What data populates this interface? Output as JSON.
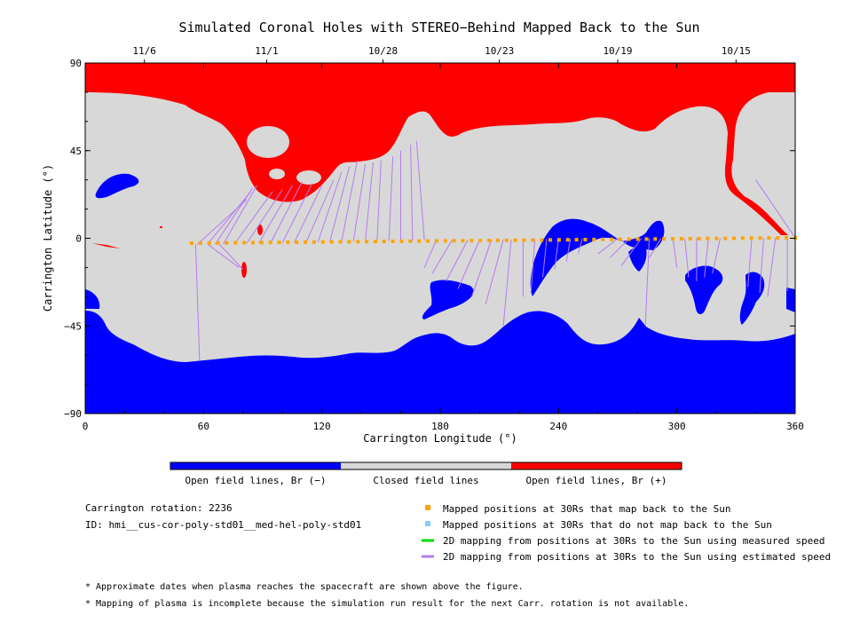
{
  "chart_data": {
    "type": "map",
    "title": "Simulated Coronal Holes with STEREO−Behind Mapped Back to the Sun",
    "xlabel": "Carrington Longitude (°)",
    "ylabel": "Carrington Latitude (°)",
    "xlim": [
      0,
      360
    ],
    "ylim": [
      -90,
      90
    ],
    "x_ticks": [
      "0",
      "60",
      "120",
      "180",
      "240",
      "300",
      "360"
    ],
    "y_ticks": [
      "−90",
      "−45",
      "0",
      "45",
      "90"
    ],
    "top_date_ticks": [
      {
        "label": "11/6",
        "lon": 30
      },
      {
        "label": "11/1",
        "lon": 92
      },
      {
        "label": "10/28",
        "lon": 151
      },
      {
        "label": "10/23",
        "lon": 210
      },
      {
        "label": "10/19",
        "lon": 270
      },
      {
        "label": "10/15",
        "lon": 330
      }
    ],
    "colorbar": [
      {
        "label": "Open field lines, Br (−)",
        "color": "#0000ff"
      },
      {
        "label": "Closed field lines",
        "color": "#d8d8d8"
      },
      {
        "label": "Open field lines, Br (+)",
        "color": "#ff0000"
      }
    ],
    "mapped_points": {
      "lon_start": 54,
      "lon_end": 360,
      "lat_start": -2.5,
      "lat_end": 0.3,
      "count": 70,
      "color": "#ffa500"
    },
    "mapping_lines": [
      {
        "from": [
          56,
          -3
        ],
        "to": [
          58,
          -63
        ]
      },
      {
        "from": [
          57,
          -3
        ],
        "to": [
          82,
          20
        ]
      },
      {
        "from": [
          62,
          -3
        ],
        "to": [
          84,
          24
        ]
      },
      {
        "from": [
          66,
          -3
        ],
        "to": [
          85,
          26
        ]
      },
      {
        "from": [
          70,
          -3
        ],
        "to": [
          87,
          27
        ]
      },
      {
        "from": [
          62,
          -3
        ],
        "to": [
          78,
          -15
        ]
      },
      {
        "from": [
          68,
          -3
        ],
        "to": [
          80,
          -16
        ]
      },
      {
        "from": [
          76,
          -2.5
        ],
        "to": [
          95,
          24
        ]
      },
      {
        "from": [
          82,
          -2.5
        ],
        "to": [
          100,
          25
        ]
      },
      {
        "from": [
          88,
          -2.5
        ],
        "to": [
          105,
          27
        ]
      },
      {
        "from": [
          94,
          -2.4
        ],
        "to": [
          110,
          29
        ]
      },
      {
        "from": [
          100,
          -2.3
        ],
        "to": [
          115,
          28
        ]
      },
      {
        "from": [
          106,
          -2.2
        ],
        "to": [
          120,
          27
        ]
      },
      {
        "from": [
          112,
          -2.1
        ],
        "to": [
          126,
          30
        ]
      },
      {
        "from": [
          118,
          -2.0
        ],
        "to": [
          130,
          34
        ]
      },
      {
        "from": [
          124,
          -1.9
        ],
        "to": [
          134,
          37
        ]
      },
      {
        "from": [
          130,
          -1.8
        ],
        "to": [
          138,
          40
        ]
      },
      {
        "from": [
          136,
          -1.7
        ],
        "to": [
          142,
          38
        ]
      },
      {
        "from": [
          142,
          -1.6
        ],
        "to": [
          146,
          39
        ]
      },
      {
        "from": [
          148,
          -1.5
        ],
        "to": [
          150,
          40
        ]
      },
      {
        "from": [
          154,
          -1.4
        ],
        "to": [
          156,
          42
        ]
      },
      {
        "from": [
          160,
          -1.3
        ],
        "to": [
          160,
          45
        ]
      },
      {
        "from": [
          166,
          -1.2
        ],
        "to": [
          165,
          48
        ]
      },
      {
        "from": [
          172,
          -1.1
        ],
        "to": [
          168,
          50
        ]
      },
      {
        "from": [
          178,
          -1.0
        ],
        "to": [
          172,
          -15
        ]
      },
      {
        "from": [
          186,
          -0.9
        ],
        "to": [
          176,
          -18
        ]
      },
      {
        "from": [
          194,
          -0.8
        ],
        "to": [
          183,
          -22
        ]
      },
      {
        "from": [
          200,
          -0.8
        ],
        "to": [
          189,
          -26
        ]
      },
      {
        "from": [
          206,
          -0.7
        ],
        "to": [
          196,
          -30
        ]
      },
      {
        "from": [
          212,
          -0.6
        ],
        "to": [
          203,
          -34
        ]
      },
      {
        "from": [
          216,
          -0.6
        ],
        "to": [
          212,
          -45
        ]
      },
      {
        "from": [
          222,
          -0.5
        ],
        "to": [
          222,
          -30
        ]
      },
      {
        "from": [
          228,
          -0.5
        ],
        "to": [
          226,
          -28
        ]
      },
      {
        "from": [
          234,
          -0.4
        ],
        "to": [
          232,
          -20
        ]
      },
      {
        "from": [
          240,
          -0.4
        ],
        "to": [
          238,
          -16
        ]
      },
      {
        "from": [
          246,
          -0.3
        ],
        "to": [
          244,
          -12
        ]
      },
      {
        "from": [
          252,
          -0.3
        ],
        "to": [
          250,
          -8
        ]
      },
      {
        "from": [
          270,
          -0.1
        ],
        "to": [
          260,
          -8
        ]
      },
      {
        "from": [
          276,
          0
        ],
        "to": [
          266,
          -10
        ]
      },
      {
        "from": [
          282,
          0
        ],
        "to": [
          272,
          -14
        ]
      },
      {
        "from": [
          286,
          0
        ],
        "to": [
          284,
          -45
        ]
      },
      {
        "from": [
          292,
          0
        ],
        "to": [
          286,
          -10
        ]
      },
      {
        "from": [
          298,
          0
        ],
        "to": [
          300,
          -15
        ]
      },
      {
        "from": [
          304,
          0.1
        ],
        "to": [
          306,
          -20
        ]
      },
      {
        "from": [
          310,
          0.1
        ],
        "to": [
          310,
          -22
        ]
      },
      {
        "from": [
          316,
          0.1
        ],
        "to": [
          314,
          -20
        ]
      },
      {
        "from": [
          322,
          0.1
        ],
        "to": [
          318,
          -18
        ]
      },
      {
        "from": [
          338,
          0.2
        ],
        "to": [
          336,
          -25
        ]
      },
      {
        "from": [
          344,
          0.2
        ],
        "to": [
          342,
          -28
        ]
      },
      {
        "from": [
          350,
          0.2
        ],
        "to": [
          346,
          -30
        ]
      },
      {
        "from": [
          356,
          0.3
        ],
        "to": [
          356,
          -27
        ]
      },
      {
        "from": [
          360,
          0.3
        ],
        "to": [
          340,
          30
        ]
      }
    ],
    "colors": {
      "closed": "#d8d8d8",
      "open_negative": "#0000ff",
      "open_positive": "#ff0000",
      "mapped_point": "#ffa500",
      "unmapped_point": "#87cefa",
      "measured_line": "#00dd00",
      "estimated_line": "#b57bee"
    }
  },
  "info": {
    "rotation": "Carrington rotation: 2236",
    "id": "ID: hmi__cus-cor-poly-std01__med-hel-poly-std01"
  },
  "legend": [
    {
      "label": "Mapped positions at 30Rs that map back to the Sun",
      "kind": "square",
      "color": "#ffa500"
    },
    {
      "label": "Mapped positions at 30Rs that do not map back to the Sun",
      "kind": "square",
      "color": "#87cefa"
    },
    {
      "label": "2D mapping from positions at 30Rs to the Sun using measured speed",
      "kind": "line",
      "color": "#00dd00"
    },
    {
      "label": "2D mapping from positions at 30Rs to the Sun using estimated speed",
      "kind": "line",
      "color": "#b57bee"
    }
  ],
  "notes": [
    "* Approximate dates when plasma reaches the spacecraft are shown above the figure.",
    "* Mapping of plasma is incomplete because the simulation run result for the next Carr. rotation is not available."
  ]
}
